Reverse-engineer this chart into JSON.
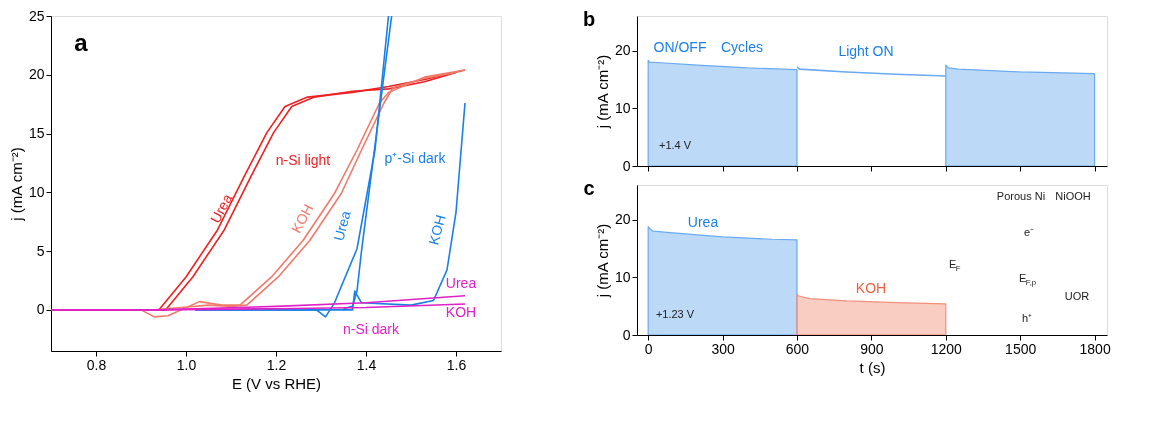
{
  "chart_data": [
    {
      "type": "line",
      "xlabel": "E (V vs RHE)",
      "ylabel": "j (mA cm⁻²)",
      "xlim": [
        0.7,
        1.7
      ],
      "ylim": [
        -3.5,
        25
      ],
      "xticks": [
        0.8,
        {
          "value": 1.0,
          "label": "1.0"
        },
        1.2,
        1.4,
        1.6
      ],
      "yticks": [
        0,
        5,
        10,
        15,
        20,
        25
      ],
      "grid": false,
      "series": [
        {
          "color": "#ee2020",
          "x": [
            0.7,
            0.9,
            0.94,
            1.0,
            1.07,
            1.13,
            1.18,
            1.22,
            1.27,
            1.37,
            1.45,
            1.53,
            1.62
          ],
          "values": [
            0,
            0,
            0,
            2.8,
            6.8,
            11.4,
            15.1,
            17.3,
            18.1,
            18.5,
            19.0,
            19.6,
            20.4
          ]
        },
        {
          "color": "#ee2020",
          "x": [
            0.7,
            0.92,
            0.955,
            1.015,
            1.085,
            1.145,
            1.195,
            1.235,
            1.285,
            1.37,
            1.45,
            1.53,
            1.6
          ],
          "values": [
            0,
            0,
            0,
            2.8,
            6.8,
            11.4,
            15.1,
            17.3,
            18.1,
            18.6,
            18.8,
            19.4,
            20.2
          ]
        },
        {
          "color": "#f07a6a",
          "x": [
            0.7,
            0.9,
            0.93,
            0.96,
            1.03,
            1.08,
            1.12,
            1.19,
            1.26,
            1.33,
            1.38,
            1.43,
            1.45,
            1.53,
            1.62
          ],
          "values": [
            0,
            0,
            -0.6,
            -0.5,
            0.7,
            0.4,
            0.4,
            2.8,
            5.9,
            9.9,
            13.6,
            17.6,
            18.5,
            19.8,
            20.4
          ]
        },
        {
          "color": "#f07a6a",
          "x": [
            0.7,
            0.93,
            0.99,
            1.05,
            1.1,
            1.135,
            1.205,
            1.275,
            1.345,
            1.39,
            1.44,
            1.46,
            1.53,
            1.6
          ],
          "values": [
            0,
            0,
            0.2,
            0.4,
            0.3,
            0.4,
            2.8,
            5.9,
            9.9,
            13.6,
            17.6,
            18.9,
            19.7,
            20.2
          ]
        },
        {
          "color": "#1a80e8",
          "x": [
            1.02,
            1.29,
            1.31,
            1.33,
            1.38,
            1.42,
            1.45
          ],
          "values": [
            0,
            0,
            -0.6,
            0.6,
            5.2,
            13.6,
            25
          ]
        },
        {
          "color": "#1a80e8",
          "x": [
            1.35,
            1.37,
            1.38,
            1.39,
            1.42,
            1.457
          ],
          "values": [
            0.1,
            0.3,
            1.6,
            5,
            14,
            25
          ]
        },
        {
          "color": "#1a80e8",
          "x": [
            1.02,
            1.37,
            1.375,
            1.39,
            1.5,
            1.55,
            1.58,
            1.6,
            1.62
          ],
          "values": [
            0,
            0,
            1.6,
            0.6,
            0.4,
            0.8,
            3.4,
            8.3,
            17.6
          ]
        },
        {
          "color": "#e020c8",
          "x": [
            0.7,
            0.94,
            1.2,
            1.4,
            1.62
          ],
          "values": [
            0,
            0,
            0.3,
            0.6,
            1.2
          ]
        },
        {
          "color": "#e020c8",
          "x": [
            0.7,
            0.94,
            1.2,
            1.4,
            1.62
          ],
          "values": [
            0,
            0,
            0.1,
            0.2,
            0.5
          ]
        }
      ],
      "annotations": [
        "a",
        "Urea",
        "KOH",
        "n-Si light",
        "Urea",
        "p⁺-Si dark",
        "KOH",
        "Urea",
        "KOH",
        "n-Si dark"
      ]
    },
    {
      "type": "line",
      "ylabel": "j (mA cm⁻²)",
      "xlim": [
        -45,
        1850
      ],
      "ylim": [
        0,
        26
      ],
      "xticks": [
        0,
        300,
        600,
        900,
        1200,
        1500,
        1800
      ],
      "yticks": [
        0,
        10,
        20
      ],
      "tick_labels": "y",
      "grid": false,
      "series": [
        {
          "type": "area",
          "color": "#6aaaf0",
          "x": [
            0,
            5,
            50,
            200,
            400,
            600
          ],
          "values": [
            18.3,
            18.0,
            17.9,
            17.5,
            17.0,
            16.7
          ]
        },
        {
          "type": "line",
          "color": "#6aaaf0",
          "x": [
            600,
            610,
            800,
            1000,
            1200
          ],
          "values": [
            17.2,
            16.8,
            16.3,
            15.9,
            15.6
          ]
        },
        {
          "type": "area",
          "color": "#6aaaf0",
          "x": [
            1200,
            1210,
            1250,
            1500,
            1800
          ],
          "values": [
            17.5,
            17.0,
            16.8,
            16.3,
            16.0
          ]
        }
      ],
      "annotations": [
        "b",
        "+1.4 V",
        "ON/OFF",
        "Cycles",
        "Light ON"
      ]
    },
    {
      "type": "line",
      "xlabel": "t (s)",
      "ylabel": "j (mA cm⁻²)",
      "xlim": [
        -45,
        1850
      ],
      "ylim": [
        0,
        26
      ],
      "xticks": [
        0,
        300,
        600,
        900,
        1200,
        1500,
        1800
      ],
      "yticks": [
        0,
        10,
        20
      ],
      "grid": false,
      "series": [
        {
          "type": "area",
          "color": "#6aaaf0",
          "x": [
            0,
            5,
            20,
            100,
            300,
            500,
            600
          ],
          "values": [
            18.8,
            18.5,
            18.0,
            17.7,
            17.0,
            16.6,
            16.5
          ]
        },
        {
          "type": "area",
          "color": "#f4907a",
          "x": [
            600,
            605,
            650,
            800,
            1000,
            1200
          ],
          "values": [
            7.0,
            6.8,
            6.3,
            5.9,
            5.6,
            5.4
          ]
        }
      ],
      "annotations": [
        "c",
        "+1.23 V",
        "Porous Ni",
        "NiOOH",
        "e⁻",
        "E$_{F}$",
        "E$_{F,p}$",
        "UOR",
        "h⁺",
        "Urea",
        "KOH"
      ]
    }
  ]
}
